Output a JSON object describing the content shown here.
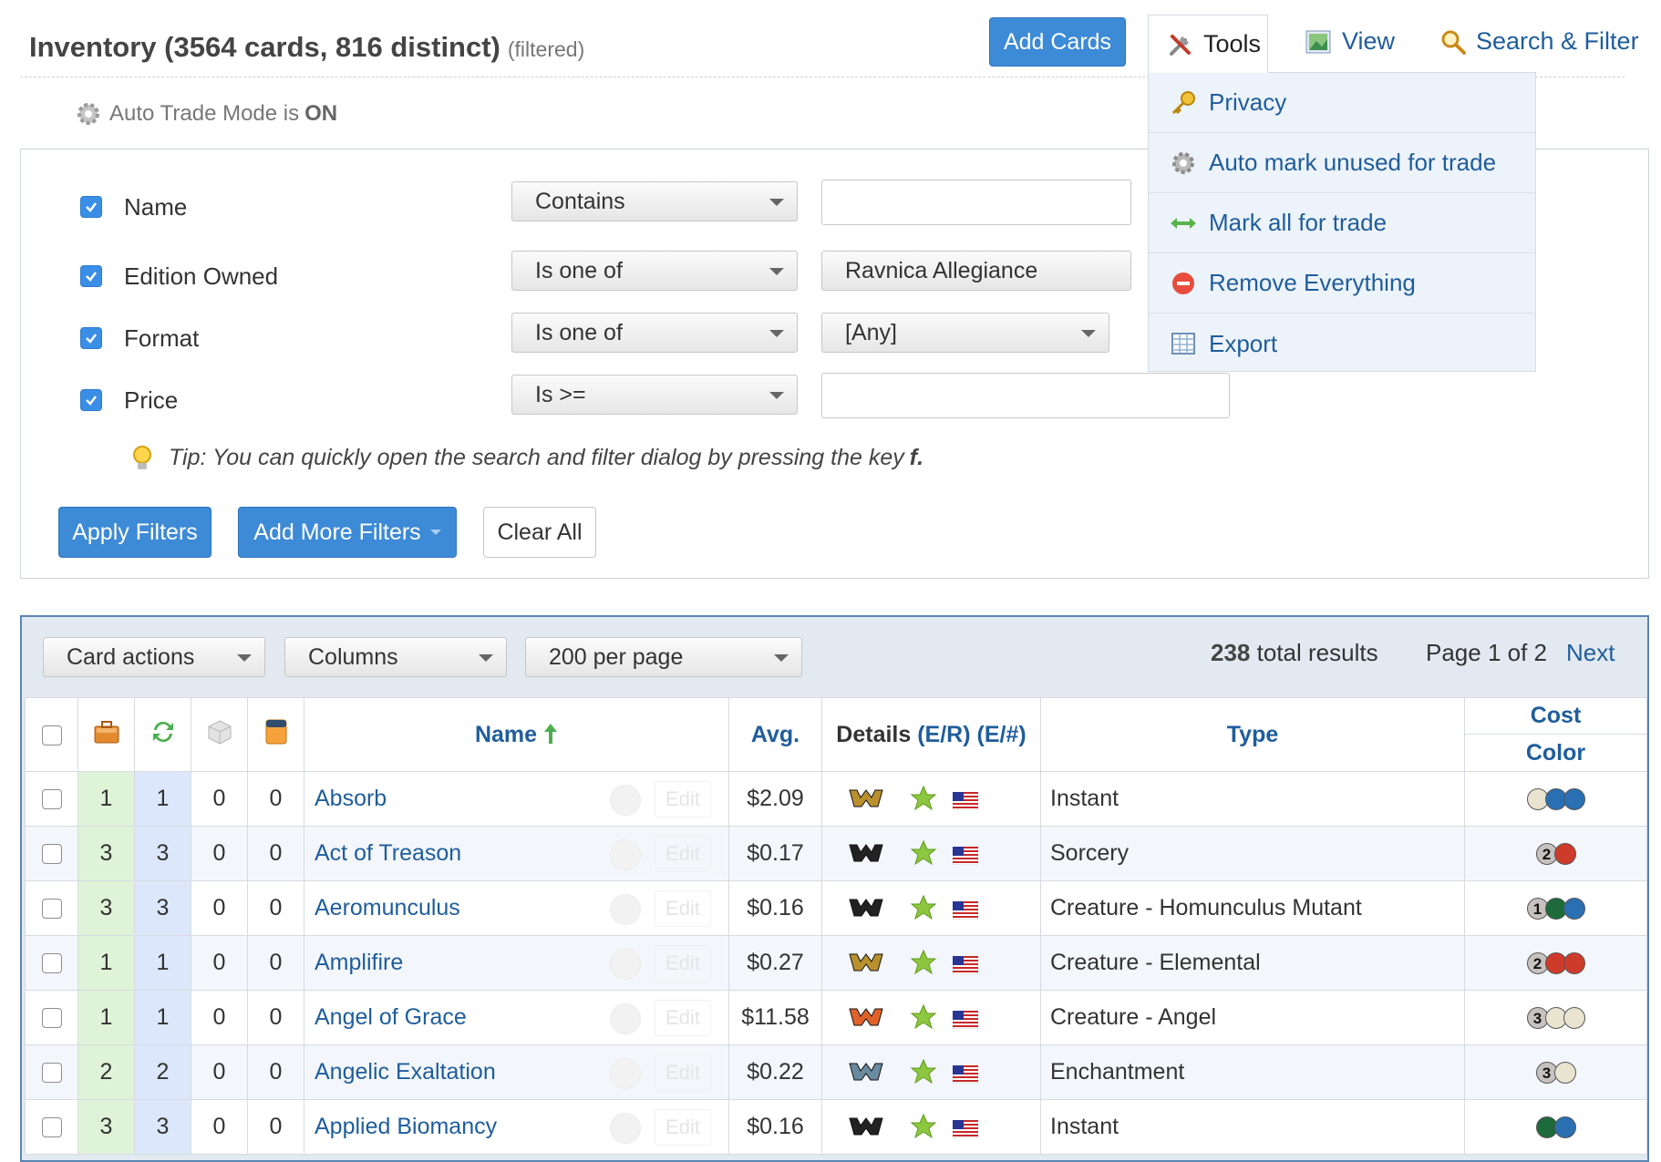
{
  "header": {
    "title": "Inventory (3564 cards, 816 distinct)",
    "filtered": "(filtered)",
    "add_cards": "Add Cards",
    "tools": "Tools",
    "view": "View",
    "search_filter": "Search & Filter"
  },
  "tools_menu": [
    {
      "label": "Privacy",
      "icon": "key-icon"
    },
    {
      "label": "Auto mark unused for trade",
      "icon": "gear-icon"
    },
    {
      "label": "Mark all for trade",
      "icon": "double-arrow-icon"
    },
    {
      "label": "Remove Everything",
      "icon": "remove-icon"
    },
    {
      "label": "Export",
      "icon": "spreadsheet-icon"
    }
  ],
  "auto_trade": {
    "text": "Auto Trade Mode is",
    "state": "ON"
  },
  "filters": [
    {
      "label": "Name",
      "operator": "Contains",
      "value": ""
    },
    {
      "label": "Edition Owned",
      "operator": "Is one of",
      "value": "Ravnica Allegiance"
    },
    {
      "label": "Format",
      "operator": "Is one of",
      "value": "[Any]"
    },
    {
      "label": "Price",
      "operator": "Is >=",
      "value": ""
    }
  ],
  "tip": {
    "text": "Tip: You can quickly open the search and filter dialog by pressing the key",
    "key": "f."
  },
  "buttons": {
    "apply": "Apply Filters",
    "add_more": "Add More Filters",
    "clear": "Clear All"
  },
  "toolbar": {
    "card_actions": "Card actions",
    "columns": "Columns",
    "per_page": "200 per page",
    "total": "238",
    "total_suffix": "total results",
    "page": "Page 1 of 2",
    "next": "Next"
  },
  "columns": {
    "name": "Name",
    "avg": "Avg.",
    "details": "Details",
    "er": "(E/R)",
    "enum": "(E/#)",
    "type": "Type",
    "cost": "Cost",
    "color": "Color",
    "edit": "Edit"
  },
  "colors": {
    "accent": "#3d8ad6",
    "link": "#1f5d9c",
    "owned_bg": "#dff3d8",
    "trade_bg": "#dce7fb"
  },
  "rows": [
    {
      "owned": "1",
      "trade": "1",
      "c3": "0",
      "c4": "0",
      "name": "Absorb",
      "avg": "$2.09",
      "type": "Instant",
      "rarity": "rare",
      "cost": [
        "w",
        "u",
        "u"
      ]
    },
    {
      "owned": "3",
      "trade": "3",
      "c3": "0",
      "c4": "0",
      "name": "Act of Treason",
      "avg": "$0.17",
      "type": "Sorcery",
      "rarity": "common",
      "cost": [
        "2",
        "r"
      ]
    },
    {
      "owned": "3",
      "trade": "3",
      "c3": "0",
      "c4": "0",
      "name": "Aeromunculus",
      "avg": "$0.16",
      "type": "Creature - Homunculus Mutant",
      "rarity": "common",
      "cost": [
        "1",
        "g",
        "u"
      ]
    },
    {
      "owned": "1",
      "trade": "1",
      "c3": "0",
      "c4": "0",
      "name": "Amplifire",
      "avg": "$0.27",
      "type": "Creature - Elemental",
      "rarity": "rare",
      "cost": [
        "2",
        "r",
        "r"
      ]
    },
    {
      "owned": "1",
      "trade": "1",
      "c3": "0",
      "c4": "0",
      "name": "Angel of Grace",
      "avg": "$11.58",
      "type": "Creature - Angel",
      "rarity": "mythic",
      "cost": [
        "3",
        "w",
        "w"
      ]
    },
    {
      "owned": "2",
      "trade": "2",
      "c3": "0",
      "c4": "0",
      "name": "Angelic Exaltation",
      "avg": "$0.22",
      "type": "Enchantment",
      "rarity": "uncommon",
      "cost": [
        "3",
        "w"
      ]
    },
    {
      "owned": "3",
      "trade": "3",
      "c3": "0",
      "c4": "0",
      "name": "Applied Biomancy",
      "avg": "$0.16",
      "type": "Instant",
      "rarity": "common",
      "cost": [
        "g",
        "u"
      ]
    }
  ]
}
